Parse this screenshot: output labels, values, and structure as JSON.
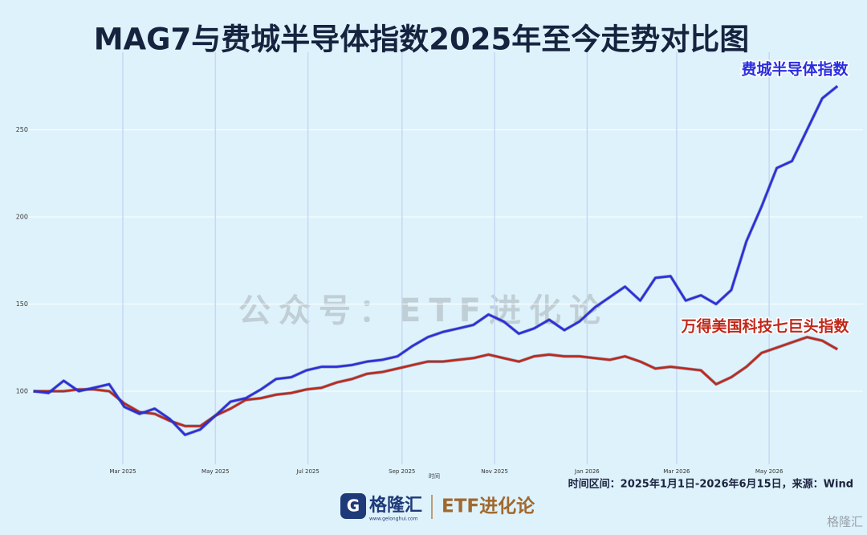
{
  "chart_data": {
    "type": "line",
    "title": "MAG7与费城半导体指数2025年至今走势对比图",
    "x_label": "时间",
    "watermark": "公众号：ETF进化论",
    "source": "时间区间：2025年1月1日-2026年6月15日，来源：Wind",
    "x": [
      "2025-01-01",
      "2025-01-11",
      "2025-01-21",
      "2025-01-31",
      "2025-02-10",
      "2025-02-20",
      "2025-03-02",
      "2025-03-12",
      "2025-03-22",
      "2025-04-01",
      "2025-04-11",
      "2025-04-21",
      "2025-05-01",
      "2025-05-11",
      "2025-05-21",
      "2025-05-31",
      "2025-06-10",
      "2025-06-20",
      "2025-06-30",
      "2025-07-10",
      "2025-07-20",
      "2025-07-30",
      "2025-08-09",
      "2025-08-19",
      "2025-08-29",
      "2025-09-08",
      "2025-09-18",
      "2025-09-28",
      "2025-10-08",
      "2025-10-18",
      "2025-10-28",
      "2025-11-07",
      "2025-11-17",
      "2025-11-27",
      "2025-12-07",
      "2025-12-17",
      "2025-12-27",
      "2026-01-06",
      "2026-01-16",
      "2026-01-26",
      "2026-02-05",
      "2026-02-15",
      "2026-02-25",
      "2026-03-07",
      "2026-03-17",
      "2026-03-27",
      "2026-04-06",
      "2026-04-16",
      "2026-04-26",
      "2026-05-06",
      "2026-05-16",
      "2026-05-26",
      "2026-06-05",
      "2026-06-15"
    ],
    "series": [
      {
        "name": "费城半导体指数",
        "color": "#2a2ee0",
        "values": [
          100,
          99,
          106,
          100,
          102,
          104,
          91,
          87,
          90,
          84,
          75,
          78,
          86,
          94,
          96,
          101,
          107,
          108,
          112,
          114,
          114,
          115,
          117,
          118,
          120,
          126,
          131,
          134,
          136,
          138,
          144,
          140,
          133,
          136,
          141,
          135,
          140,
          148,
          154,
          160,
          152,
          165,
          166,
          152,
          155,
          150,
          158,
          186,
          206,
          228,
          232,
          250,
          268,
          275
        ]
      },
      {
        "name": "万得美国科技七巨头指数",
        "color": "#c0281a",
        "values": [
          100,
          100,
          100,
          101,
          101,
          100,
          93,
          88,
          87,
          83,
          80,
          80,
          86,
          90,
          95,
          96,
          98,
          99,
          101,
          102,
          105,
          107,
          110,
          111,
          113,
          115,
          117,
          117,
          118,
          119,
          121,
          119,
          117,
          120,
          121,
          120,
          120,
          119,
          118,
          120,
          117,
          113,
          114,
          113,
          112,
          104,
          108,
          114,
          122,
          125,
          128,
          131,
          129,
          124
        ]
      }
    ],
    "xlim": [
      "2025-01-01",
      "2026-06-15"
    ],
    "xticks": [
      {
        "value": "2025-03-01",
        "label": "Mar 2025"
      },
      {
        "value": "2025-05-01",
        "label": "May 2025"
      },
      {
        "value": "2025-07-01",
        "label": "Jul 2025"
      },
      {
        "value": "2025-09-01",
        "label": "Sep 2025"
      },
      {
        "value": "2025-11-01",
        "label": "Nov 2025"
      },
      {
        "value": "2026-01-01",
        "label": "Jan 2026"
      },
      {
        "value": "2026-03-01",
        "label": "Mar 2026"
      },
      {
        "value": "2026-05-01",
        "label": "May 2026"
      }
    ],
    "ylim": [
      60,
      290
    ],
    "yticks": [
      100,
      150,
      200,
      250
    ],
    "grid": true
  },
  "footer": {
    "brand": "格隆汇",
    "url": "www.gelonghui.com",
    "account": "ETF进化论",
    "corner_brand": "格隆汇"
  }
}
